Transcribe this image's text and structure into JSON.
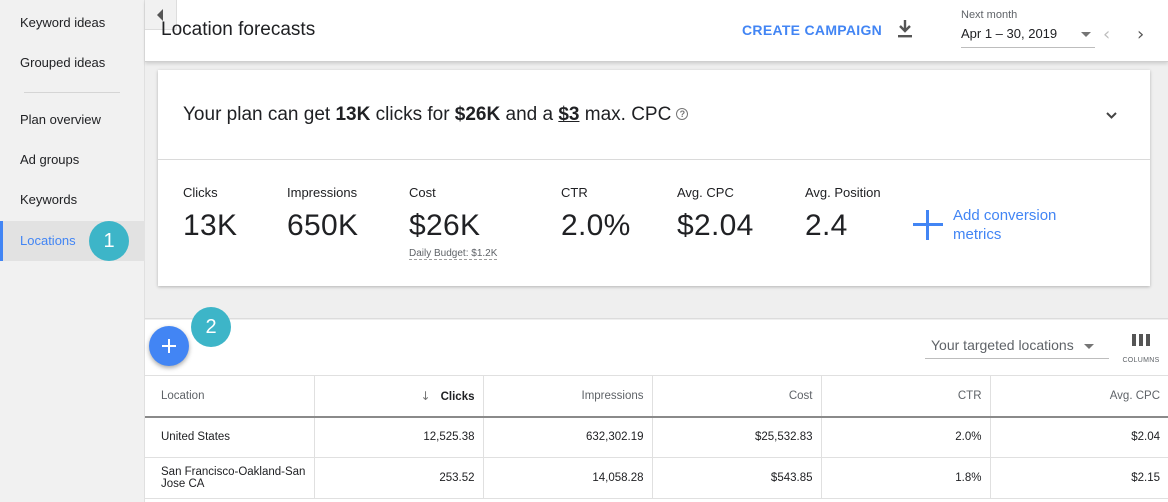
{
  "sidebar": {
    "items": [
      {
        "label": "Keyword ideas"
      },
      {
        "label": "Grouped ideas"
      },
      {
        "label": "Plan overview"
      },
      {
        "label": "Ad groups"
      },
      {
        "label": "Keywords"
      },
      {
        "label": "Locations",
        "active": true
      }
    ],
    "step_badge": "1"
  },
  "header": {
    "title": "Location forecasts",
    "create_campaign": "CREATE CAMPAIGN",
    "date_label": "Next month",
    "date_value": "Apr 1 – 30, 2019",
    "prev_icon": "chevron-left-icon",
    "next_icon": "chevron-right-icon"
  },
  "summary": {
    "sentence_prefix": "Your plan can get ",
    "clicks": "13K",
    "mid1": " clicks for ",
    "cost": "$26K",
    "mid2": " and a ",
    "max_cpc": "$3",
    "suffix": " max. CPC",
    "help_glyph": "?"
  },
  "metrics": {
    "clicks": {
      "label": "Clicks",
      "value": "13K"
    },
    "impressions": {
      "label": "Impressions",
      "value": "650K"
    },
    "cost": {
      "label": "Cost",
      "value": "$26K",
      "sub": "Daily Budget: $1.2K"
    },
    "ctr": {
      "label": "CTR",
      "value": "2.0%"
    },
    "avg_cpc": {
      "label": "Avg. CPC",
      "value": "$2.04"
    },
    "avg_position": {
      "label": "Avg. Position",
      "value": "2.4"
    },
    "add_conversion": "Add conversion metrics"
  },
  "toolbar": {
    "step_badge": "2",
    "location_filter": "Your targeted locations",
    "columns_label": "COLUMNS"
  },
  "table": {
    "headers": {
      "location": "Location",
      "clicks": "Clicks",
      "impressions": "Impressions",
      "cost": "Cost",
      "ctr": "CTR",
      "avg_cpc": "Avg. CPC"
    },
    "rows": [
      {
        "location": "United States",
        "clicks": "12,525.38",
        "impressions": "632,302.19",
        "cost": "$25,532.83",
        "ctr": "2.0%",
        "avg_cpc": "$2.04"
      },
      {
        "location": "San Francisco-Oakland-San Jose CA",
        "clicks": "253.52",
        "impressions": "14,058.28",
        "cost": "$543.85",
        "ctr": "1.8%",
        "avg_cpc": "$2.15"
      }
    ]
  },
  "colors": {
    "accent": "#4285f4",
    "badge": "#3db5c8",
    "sidebar_bg": "#f1f1f1"
  }
}
